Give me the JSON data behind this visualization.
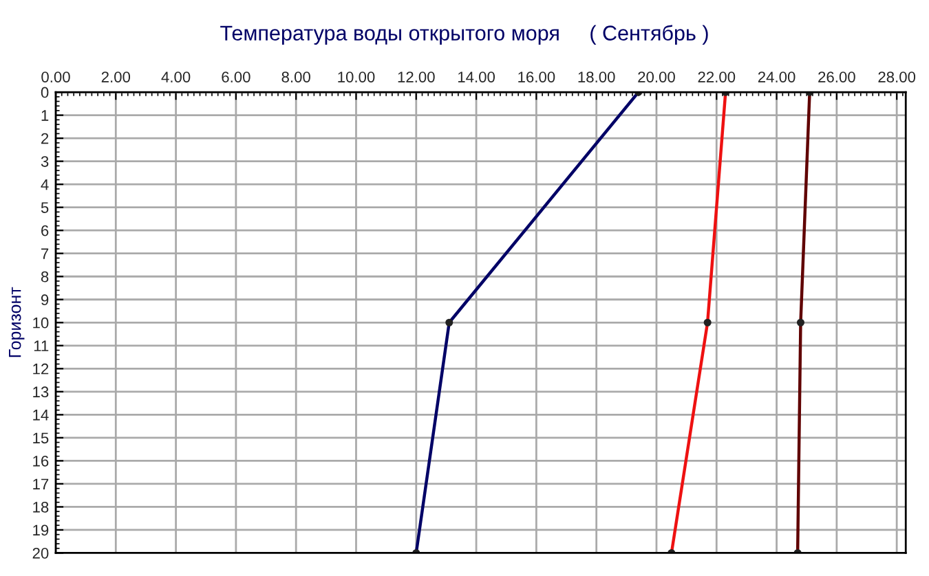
{
  "chart_data": {
    "type": "line",
    "title": "Температура воды открытого моря     ( Сентябрь )",
    "ylabel": "Горизонт",
    "series": [
      {
        "color": "#000066",
        "x": [
          19.4,
          13.1,
          12.0
        ],
        "values": [
          0,
          10,
          20
        ]
      },
      {
        "color": "#ee1111",
        "x": [
          22.3,
          21.7,
          20.5
        ],
        "values": [
          0,
          10,
          20
        ]
      },
      {
        "color": "#600000",
        "x": [
          25.1,
          24.8,
          24.7
        ],
        "values": [
          0,
          10,
          20
        ]
      }
    ],
    "xlim": [
      0,
      28.3
    ],
    "xticks": [
      {
        "value": 0,
        "label": "0.00"
      },
      {
        "value": 2,
        "label": "2.00"
      },
      {
        "value": 4,
        "label": "4.00"
      },
      {
        "value": 6,
        "label": "6.00"
      },
      {
        "value": 8,
        "label": "8.00"
      },
      {
        "value": 10,
        "label": "10.00"
      },
      {
        "value": 12,
        "label": "12.00"
      },
      {
        "value": 14,
        "label": "14.00"
      },
      {
        "value": 16,
        "label": "16.00"
      },
      {
        "value": 18,
        "label": "18.00"
      },
      {
        "value": 20,
        "label": "20.00"
      },
      {
        "value": 22,
        "label": "22.00"
      },
      {
        "value": 24,
        "label": "24.00"
      },
      {
        "value": 26,
        "label": "26.00"
      },
      {
        "value": 28,
        "label": "28.00"
      }
    ],
    "ylim": [
      20,
      0
    ],
    "yticks": [
      0,
      1,
      2,
      3,
      4,
      5,
      6,
      7,
      8,
      9,
      10,
      11,
      12,
      13,
      14,
      15,
      16,
      17,
      18,
      19,
      20
    ],
    "grid": true,
    "marker": "circle",
    "line_style": "solid"
  }
}
